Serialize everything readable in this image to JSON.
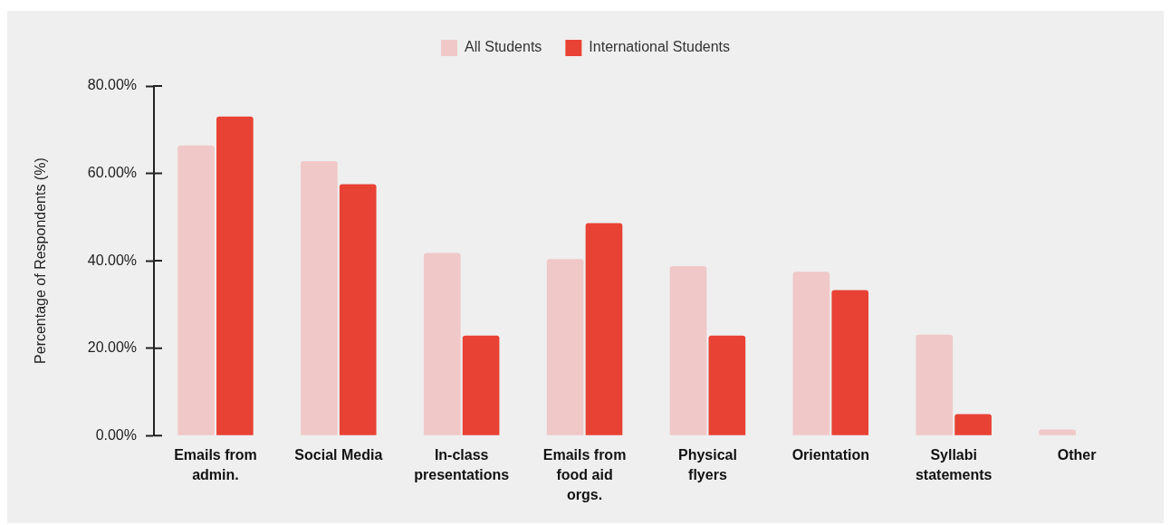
{
  "chart_data": {
    "type": "bar",
    "ylabel": "Percentage of Respondents (%)",
    "categories": [
      "Emails from admin.",
      "Social Media",
      "In-class presentations",
      "Emails from food aid orgs.",
      "Physical flyers",
      "Orientation",
      "Syllabi statements",
      "Other"
    ],
    "series": [
      {
        "name": "All Students",
        "color": "#f0c8c8",
        "values": [
          66.4,
          62.8,
          41.8,
          40.4,
          38.8,
          37.5,
          23.1,
          1.4
        ]
      },
      {
        "name": "International Students",
        "color": "#e84234",
        "values": [
          73.0,
          57.5,
          22.9,
          48.6,
          22.9,
          33.3,
          4.9,
          null
        ]
      }
    ],
    "ylim": [
      0,
      80
    ],
    "yticks": [
      {
        "value": 0,
        "label": "0.00%"
      },
      {
        "value": 20,
        "label": "20.00%"
      },
      {
        "value": 40,
        "label": "40.00%"
      },
      {
        "value": 60,
        "label": "60.00%"
      },
      {
        "value": 80,
        "label": "80.00%"
      }
    ],
    "legend": "top"
  }
}
